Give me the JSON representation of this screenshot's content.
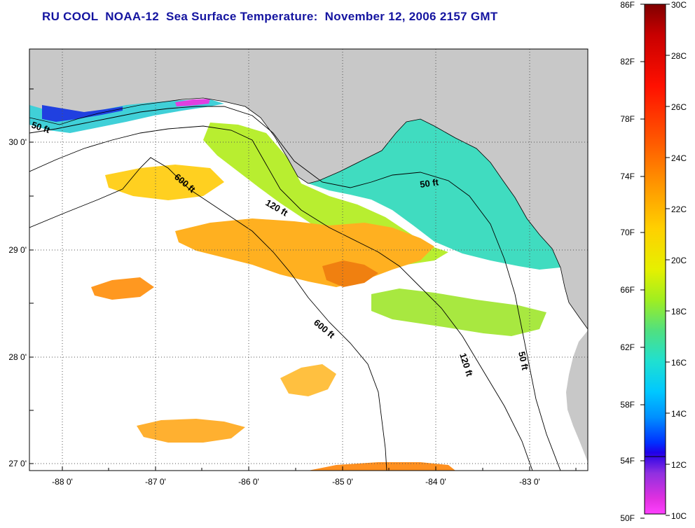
{
  "title": "RU COOL  NOAA-12  Sea Surface Temperature:  November 12, 2006 2157 GMT",
  "map": {
    "lon_labels": [
      "-88 0'",
      "-87 0'",
      "-86 0'",
      "-85 0'",
      "-84 0'",
      "-83 0'"
    ],
    "lat_labels": [
      "30 0'",
      "29 0'",
      "28 0'",
      "27 0'"
    ],
    "depth_labels": [
      "50 ft",
      "600 ft",
      "120 ft",
      "50 ft",
      "600 ft",
      "120 ft",
      "50 ft"
    ],
    "colors": {
      "land": "#c8c8c8",
      "cloud": "#ffffff",
      "grid": "#555555"
    }
  },
  "colorbar": {
    "f_labels": [
      "86F",
      "82F",
      "78F",
      "74F",
      "70F",
      "66F",
      "62F",
      "58F",
      "54F",
      "50F"
    ],
    "c_labels": [
      "30C",
      "28C",
      "26C",
      "24C",
      "22C",
      "20C",
      "18C",
      "16C",
      "14C",
      "12C",
      "10C"
    ]
  }
}
